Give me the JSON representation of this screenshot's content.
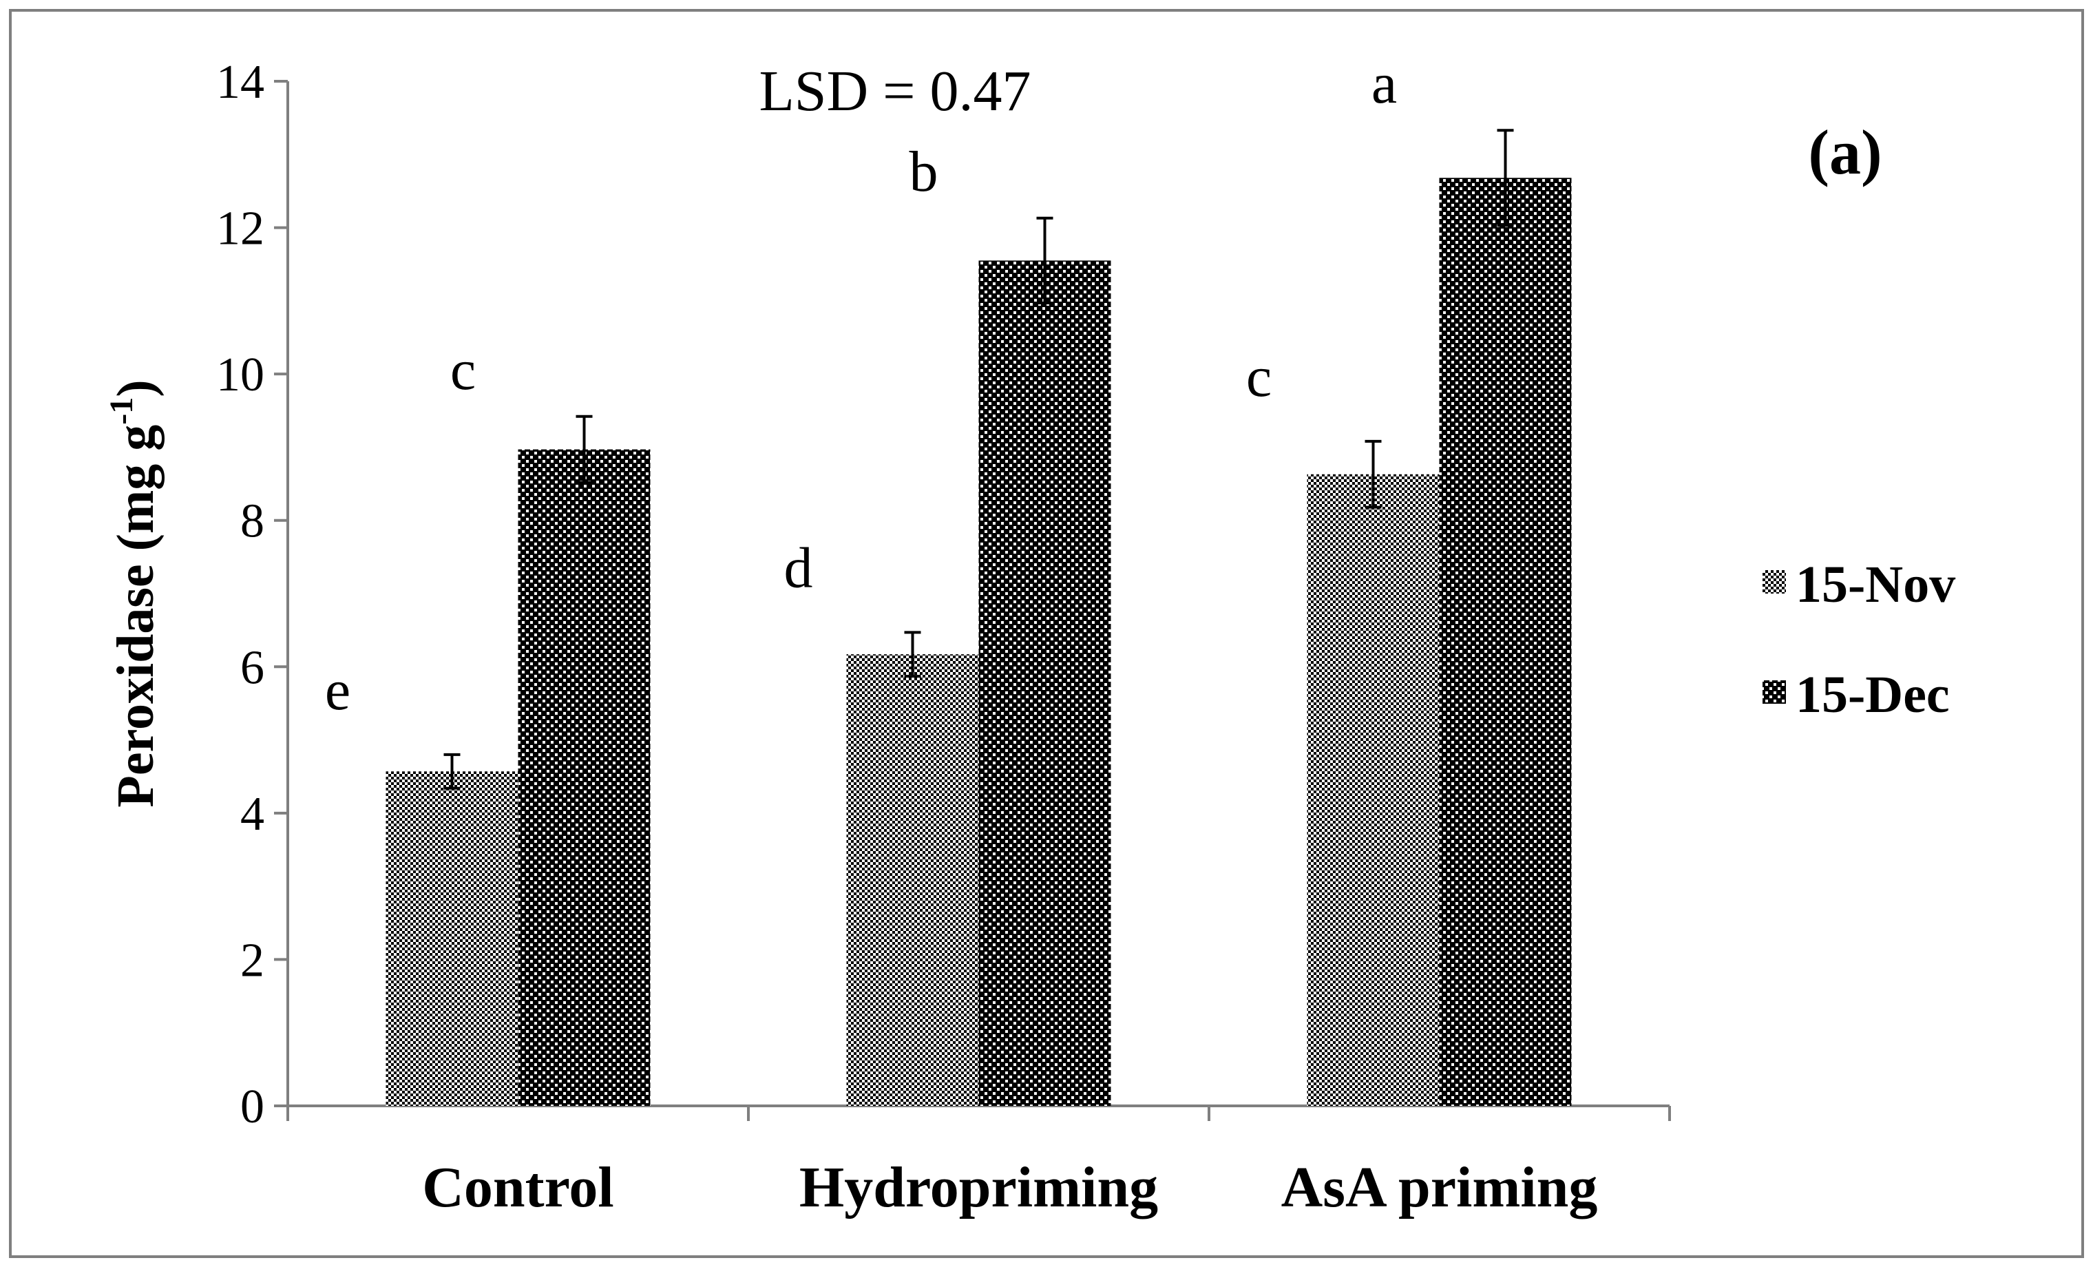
{
  "chart_data": {
    "type": "bar",
    "panel_label": "(a)",
    "annotation": "LSD = 0.47",
    "ylabel": "Peroxidase (mg g",
    "ylabel_sup": "-1",
    "ylabel_close": ")",
    "xlabel": "",
    "ylim": [
      0,
      14
    ],
    "yticks": [
      0,
      2,
      4,
      6,
      8,
      10,
      12,
      14
    ],
    "ytick_labels": [
      "0",
      "2",
      "4",
      "6",
      "8",
      "10",
      "12",
      "14"
    ],
    "categories": [
      "Control",
      "Hydropriming",
      "AsA priming"
    ],
    "series": [
      {
        "name": "15-Nov",
        "values": [
          4.57,
          6.17,
          8.63
        ],
        "errors": [
          0.23,
          0.3,
          0.45
        ],
        "letters": [
          "e",
          "d",
          "c"
        ],
        "pattern": "fine-checker"
      },
      {
        "name": "15-Dec",
        "values": [
          8.97,
          11.55,
          12.68
        ],
        "errors": [
          0.45,
          0.58,
          0.65
        ],
        "letters": [
          "c",
          "b",
          "a"
        ],
        "pattern": "coarse-dots"
      }
    ],
    "legend": [
      "15-Nov",
      "15-Dec"
    ],
    "legend_position": "right",
    "grid": false,
    "colors": {
      "ink": "#000000",
      "background": "#ffffff",
      "border": "#7f7f7f"
    }
  }
}
